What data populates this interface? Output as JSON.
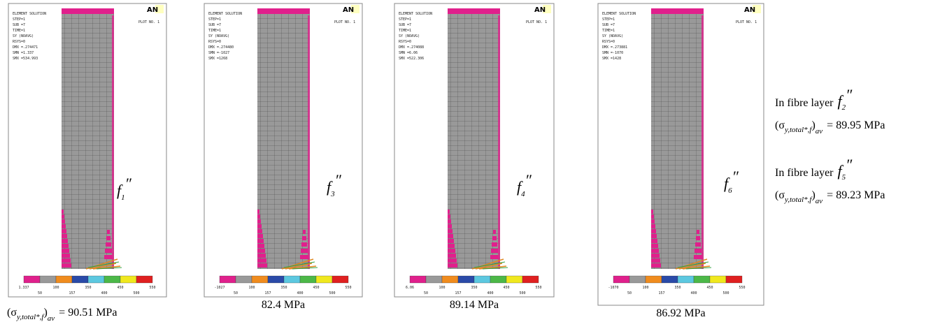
{
  "panels": [
    {
      "label": "f",
      "label_sub": "1",
      "label_prime": "″",
      "info": [
        "ELEMENT SOLUTION",
        "STEP=1",
        "SUB =7",
        "TIME=1",
        "SY      (NOAVG)",
        "RSYS=0",
        "DMX =.274471",
        "SMN =1.337",
        "SMX =534.993"
      ],
      "plot_no": "PLOT NO.   1",
      "logo": "AN",
      "legend": [
        "1.337",
        "50",
        "100",
        "157",
        "350",
        "400",
        "450",
        "500",
        "550"
      ],
      "caption": {
        "sigma": "(σ",
        "sub": "y,total*,f",
        "close": ")",
        "av": "av",
        "value": "= 90.51 MPa"
      }
    },
    {
      "label": "f",
      "label_sub": "3",
      "label_prime": "″",
      "info": [
        "ELEMENT SOLUTION",
        "STEP=1",
        "SUB =7",
        "TIME=1",
        "SY      (NOAVG)",
        "RSYS=0",
        "DMX =.274480",
        "SMN =-1027",
        "SMX =1268"
      ],
      "plot_no": "PLOT NO.   1",
      "logo": "AN",
      "legend": [
        "-1027",
        "50",
        "100",
        "157",
        "350",
        "400",
        "450",
        "500",
        "550"
      ],
      "caption": {
        "value": "82.4 MPa"
      }
    },
    {
      "label": "f",
      "label_sub": "4",
      "label_prime": "″",
      "info": [
        "ELEMENT SOLUTION",
        "STEP=1",
        "SUB =7",
        "TIME=1",
        "SY      (NOAVG)",
        "RSYS=0",
        "DMX =.274088",
        "SMN =6.06",
        "SMX =522.306"
      ],
      "plot_no": "PLOT NO.   1",
      "logo": "AN",
      "legend": [
        "6.06",
        "50",
        "100",
        "157",
        "350",
        "400",
        "450",
        "500",
        "550"
      ],
      "caption": {
        "value": "89.14 MPa"
      }
    },
    {
      "label": "f",
      "label_sub": "6",
      "label_prime": "″",
      "info": [
        "ELEMENT SOLUTION",
        "STEP=1",
        "SUB =7",
        "TIME=1",
        "SY      (NOAVG)",
        "RSYS=0",
        "DMX =.273881",
        "SMN =-1070",
        "SMX =1428"
      ],
      "plot_no": "PLOT NO.   1",
      "logo": "AN",
      "legend": [
        "-1070",
        "50",
        "100",
        "157",
        "350",
        "400",
        "450",
        "500",
        "550"
      ],
      "caption": {
        "value": "86.92 MPa"
      }
    }
  ],
  "notes": [
    {
      "text": "In fibre layer",
      "label": "f",
      "label_sub": "2",
      "label_prime": "″",
      "sigma": "(σ",
      "sub": "y,total*,f",
      "close": ")",
      "av": "av",
      "value": "= 89.95 MPa"
    },
    {
      "text": "In fibre layer",
      "label": "f",
      "label_sub": "5",
      "label_prime": "″",
      "sigma": "(σ",
      "sub": "y,total*,f",
      "close": ")",
      "av": "av",
      "value": "= 89.23 MPa"
    }
  ]
}
